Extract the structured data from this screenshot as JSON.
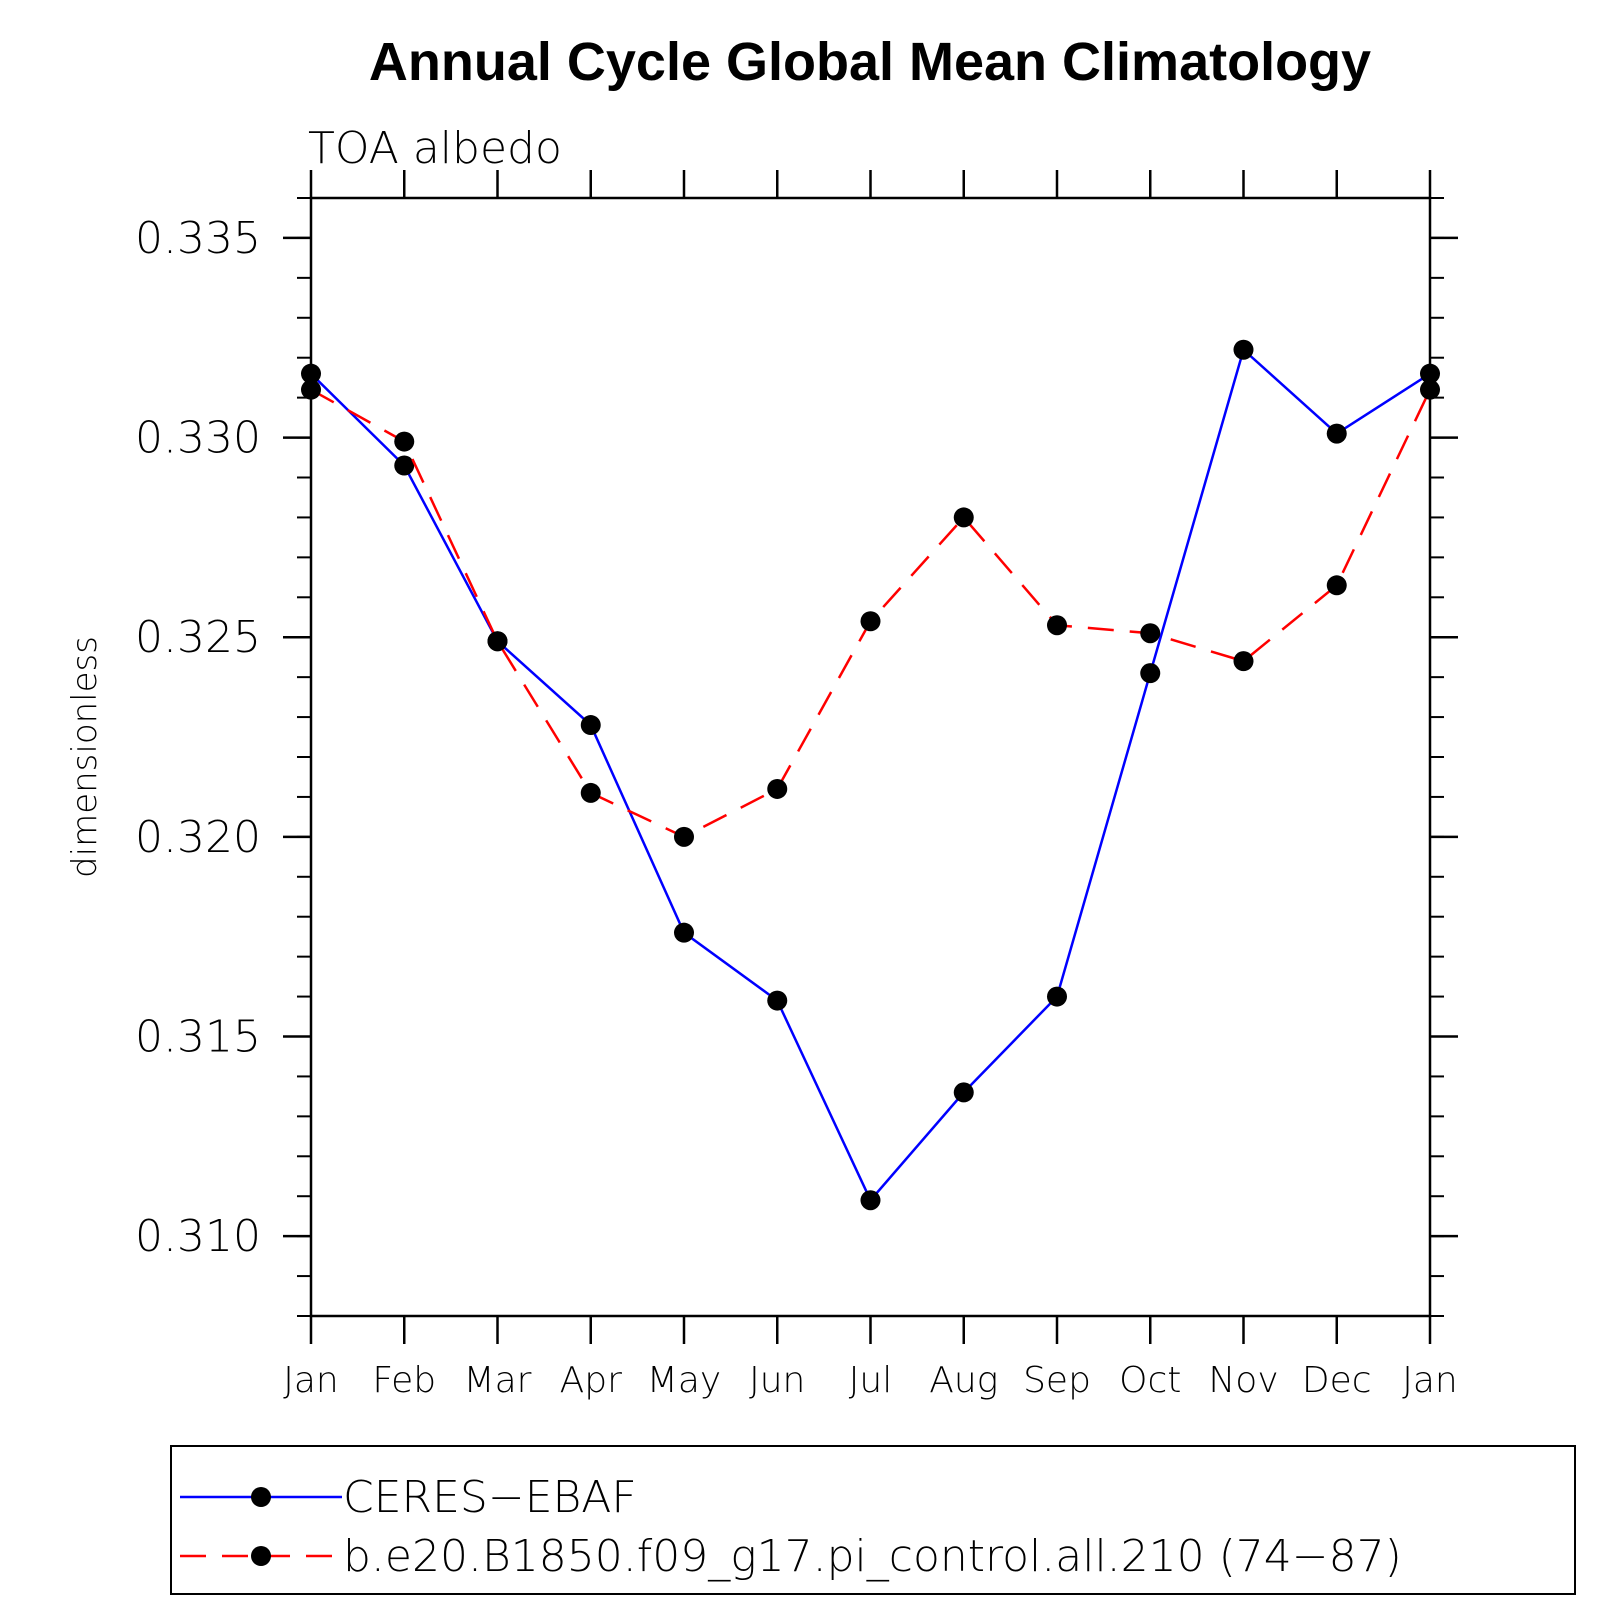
{
  "chart_data": {
    "type": "line",
    "title": "Annual Cycle Global Mean Climatology",
    "subtitle": "TOA albedo",
    "xlabel": "",
    "ylabel": "dimensionless",
    "categories": [
      "Jan",
      "Feb",
      "Mar",
      "Apr",
      "May",
      "Jun",
      "Jul",
      "Aug",
      "Sep",
      "Oct",
      "Nov",
      "Dec",
      "Jan"
    ],
    "ylim": [
      0.308,
      0.336
    ],
    "yticks": [
      0.31,
      0.315,
      0.32,
      0.325,
      0.33,
      0.335
    ],
    "ytick_labels": [
      "0.310",
      "0.315",
      "0.320",
      "0.325",
      "0.330",
      "0.335"
    ],
    "grid": false,
    "legend_position": "bottom",
    "series": [
      {
        "name": "CERES−EBAF",
        "color": "#0000ff",
        "style": "solid",
        "marker": "circle",
        "values": [
          0.3316,
          0.3293,
          0.3249,
          0.3228,
          0.3176,
          0.3159,
          0.3109,
          0.3136,
          0.316,
          0.3241,
          0.3322,
          0.3301,
          0.3316
        ]
      },
      {
        "name": "b.e20.B1850.f09_g17.pi_control.all.210 (74−87)",
        "color": "#ff0000",
        "style": "dashed",
        "marker": "circle",
        "values": [
          0.3312,
          0.3299,
          0.3249,
          0.3211,
          0.32,
          0.3212,
          0.3254,
          0.328,
          0.3253,
          0.3251,
          0.3244,
          0.3263,
          0.3312
        ]
      }
    ]
  }
}
